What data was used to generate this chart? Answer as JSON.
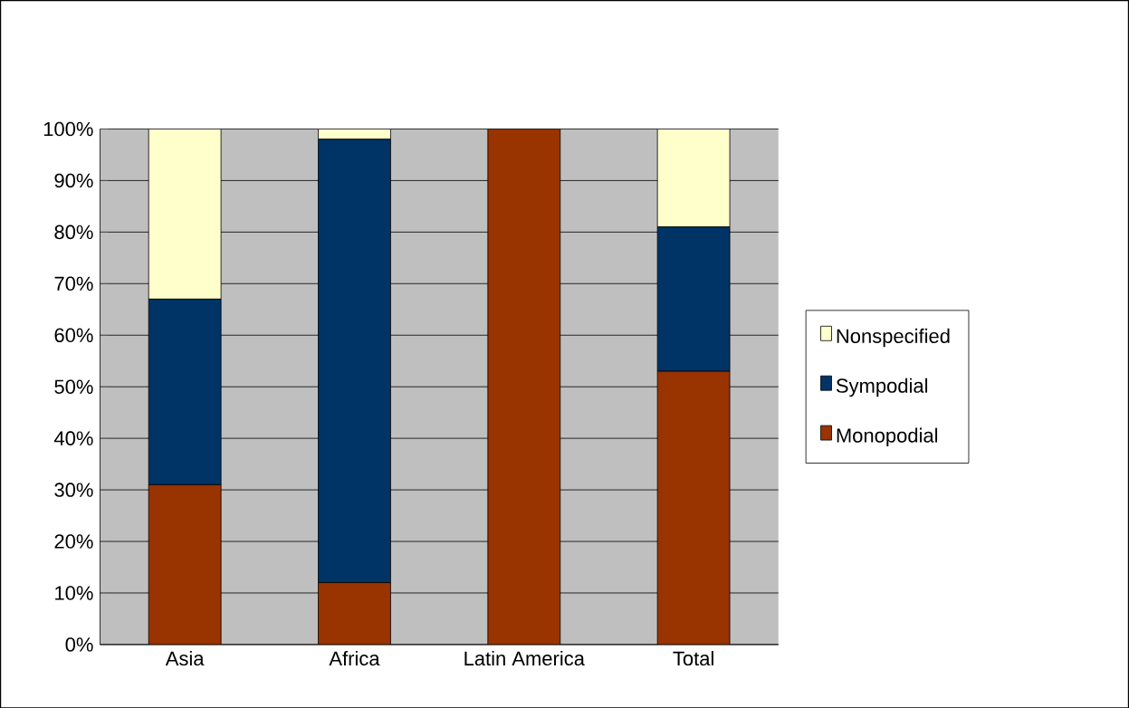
{
  "chart_data": {
    "type": "bar",
    "stacked": true,
    "categories": [
      "Asia",
      "Africa",
      "Latin America",
      "Total"
    ],
    "series": [
      {
        "name": "Monopodial",
        "color": "#993300",
        "values": [
          31,
          12,
          100,
          53
        ]
      },
      {
        "name": "Sympodial",
        "color": "#003366",
        "values": [
          36,
          86,
          0,
          28
        ]
      },
      {
        "name": "Nonspecified",
        "color": "#ffffcc",
        "values": [
          33,
          2,
          0,
          19
        ]
      }
    ],
    "ylim": [
      0,
      100
    ],
    "yticks": [
      {
        "value": 0,
        "label": "0%"
      },
      {
        "value": 10,
        "label": "10%"
      },
      {
        "value": 20,
        "label": "20%"
      },
      {
        "value": 30,
        "label": "30%"
      },
      {
        "value": 40,
        "label": "40%"
      },
      {
        "value": 50,
        "label": "50%"
      },
      {
        "value": 60,
        "label": "60%"
      },
      {
        "value": 70,
        "label": "70%"
      },
      {
        "value": 80,
        "label": "80%"
      },
      {
        "value": 90,
        "label": "90%"
      },
      {
        "value": 100,
        "label": "100%"
      }
    ],
    "grid": "y",
    "legend": "right"
  }
}
